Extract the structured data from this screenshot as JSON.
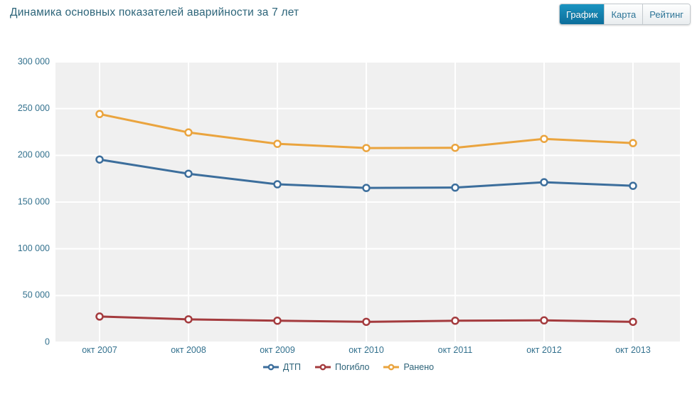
{
  "header": {
    "title": "Динамика основных показателей аварийности за 7 лет",
    "tabs": [
      {
        "id": "grafik",
        "label": "График",
        "active": true
      },
      {
        "id": "karta",
        "label": "Карта",
        "active": false
      },
      {
        "id": "reyting",
        "label": "Рейтинг",
        "active": false
      }
    ]
  },
  "colors": {
    "title_text": "#2c6479",
    "axis_text": "#33718e",
    "legend_text": "#2d6379",
    "plot_background": "#f0f0f0",
    "gridline": "#ffffff",
    "active_tab": "#1080ad",
    "tab_text": "#2d7597"
  },
  "chart_data": {
    "type": "line",
    "title": "Динамика основных показателей аварийности за 7 лет",
    "categories": [
      "окт 2007",
      "окт 2008",
      "окт 2009",
      "окт 2010",
      "окт 2011",
      "окт 2012",
      "окт 2013"
    ],
    "series": [
      {
        "id": "dtp",
        "name": "ДТП",
        "color": "#3c6e9c",
        "values": [
          195500,
          180300,
          169000,
          165100,
          165500,
          171200,
          167400
        ]
      },
      {
        "id": "pogiblo",
        "name": "Погибло",
        "color": "#a43b3e",
        "values": [
          27500,
          24500,
          23000,
          21800,
          23000,
          23400,
          21800
        ]
      },
      {
        "id": "raneno",
        "name": "Ранено",
        "color": "#eaa43e",
        "values": [
          244200,
          224500,
          212300,
          207800,
          208100,
          217600,
          213100
        ]
      }
    ],
    "ylim": [
      0,
      300000
    ],
    "ytick_step": 50000,
    "ytick_labels": [
      "0",
      "50 000",
      "100 000",
      "150 000",
      "200 000",
      "250 000",
      "300 000"
    ],
    "grid": true,
    "legend_position": "bottom",
    "marker": "open-circle"
  }
}
